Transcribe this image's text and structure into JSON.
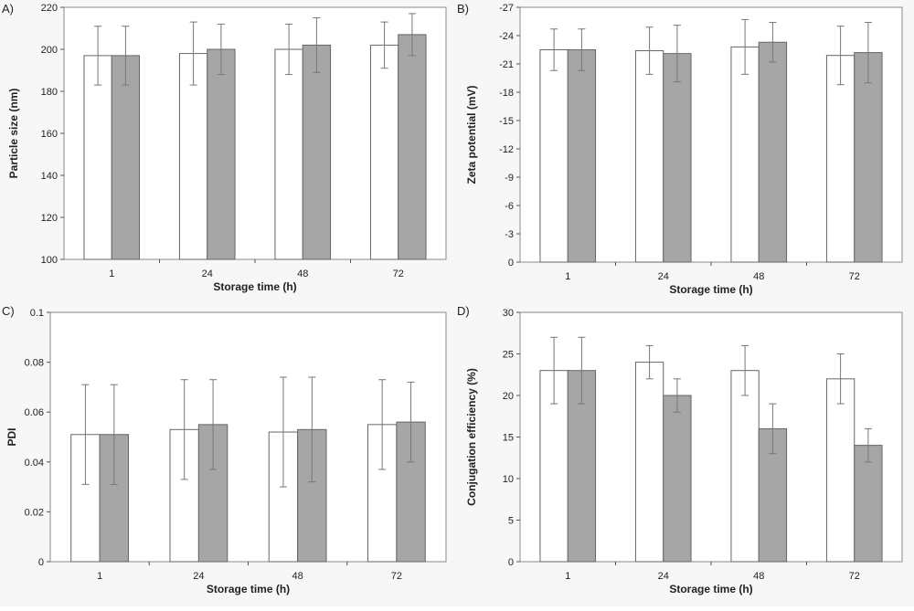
{
  "chart_data": [
    {
      "panel_label": "A)",
      "type": "bar",
      "categories": [
        "1",
        "24",
        "48",
        "72"
      ],
      "xlabel": "Storage time (h)",
      "ylabel": "Particle size (nm)",
      "ylim": [
        100,
        220
      ],
      "yticks": [
        "100",
        "120",
        "140",
        "160",
        "180",
        "200",
        "220"
      ],
      "series": [
        {
          "values": [
            197,
            198,
            200,
            202
          ],
          "errors": [
            14,
            15,
            12,
            11
          ],
          "color": "#ffffff"
        },
        {
          "values": [
            197,
            200,
            202,
            207
          ],
          "errors": [
            14,
            12,
            13,
            10
          ],
          "color": "#a6a6a6"
        }
      ]
    },
    {
      "panel_label": "B)",
      "type": "bar",
      "categories": [
        "1",
        "24",
        "48",
        "72"
      ],
      "xlabel": "Storage time (h)",
      "ylabel": "Zeta potential (mV)",
      "ylim": [
        0,
        -27
      ],
      "yticks": [
        "0",
        "-3",
        "-6",
        "-9",
        "-12",
        "-15",
        "-18",
        "-21",
        "-24",
        "-27"
      ],
      "series": [
        {
          "values": [
            -22.5,
            -22.4,
            -22.8,
            -21.9
          ],
          "errors": [
            2.2,
            2.5,
            2.9,
            3.1
          ],
          "color": "#ffffff"
        },
        {
          "values": [
            -22.5,
            -22.1,
            -23.3,
            -22.2
          ],
          "errors": [
            2.2,
            3.0,
            2.1,
            3.2
          ],
          "color": "#a6a6a6"
        }
      ]
    },
    {
      "panel_label": "C)",
      "type": "bar",
      "categories": [
        "1",
        "24",
        "48",
        "72"
      ],
      "xlabel": "Storage time (h)",
      "ylabel": "PDI",
      "ylim": [
        0,
        0.1
      ],
      "yticks": [
        "0",
        "0.02",
        "0.04",
        "0.06",
        "0.08",
        "0.1"
      ],
      "series": [
        {
          "values": [
            0.051,
            0.053,
            0.052,
            0.055
          ],
          "errors": [
            0.02,
            0.02,
            0.022,
            0.018
          ],
          "color": "#ffffff"
        },
        {
          "values": [
            0.051,
            0.055,
            0.053,
            0.056
          ],
          "errors": [
            0.02,
            0.018,
            0.021,
            0.016
          ],
          "color": "#a6a6a6"
        }
      ]
    },
    {
      "panel_label": "D)",
      "type": "bar",
      "categories": [
        "1",
        "24",
        "48",
        "72"
      ],
      "xlabel": "Storage time (h)",
      "ylabel": "Conjugation efficiency (%)",
      "ylim": [
        0,
        30
      ],
      "yticks": [
        "0",
        "5",
        "10",
        "15",
        "20",
        "25",
        "30"
      ],
      "series": [
        {
          "values": [
            23,
            24,
            23,
            22
          ],
          "errors": [
            4,
            2,
            3,
            3
          ],
          "color": "#ffffff"
        },
        {
          "values": [
            23,
            20,
            16,
            14
          ],
          "errors": [
            4,
            2,
            3,
            2
          ],
          "color": "#a6a6a6"
        }
      ]
    }
  ]
}
